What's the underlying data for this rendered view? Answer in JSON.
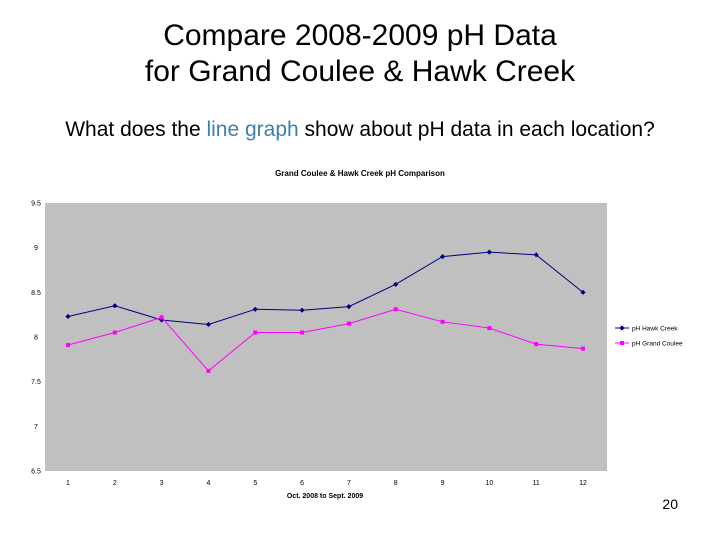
{
  "slide": {
    "title_line1": "Compare 2008-2009 pH Data",
    "title_line2": "for Grand Coulee & Hawk Creek",
    "question_before": "What does the ",
    "question_highlight": "line graph",
    "question_after": " show about pH data in each location?",
    "page_number": "20"
  },
  "colors": {
    "plot_background": "#c0c0c0",
    "hawk_creek": "#000080",
    "grand_coulee": "#ff00ff",
    "highlight_text": "#3e7fae"
  },
  "chart_data": {
    "type": "line",
    "title": "Grand Coulee & Hawk Creek pH Comparison",
    "xlabel": "Oct. 2008 to Sept. 2009",
    "ylabel": "",
    "x": [
      1,
      2,
      3,
      4,
      5,
      6,
      7,
      8,
      9,
      10,
      11,
      12
    ],
    "ylim": [
      6.5,
      9.5
    ],
    "yticks": [
      "6.5",
      "7",
      "7.5",
      "8",
      "8.5",
      "9",
      "9.5"
    ],
    "grid": false,
    "legend_position": "right",
    "series": [
      {
        "name": "pH Hawk Creek",
        "color": "#000080",
        "marker": "diamond",
        "values": [
          8.23,
          8.35,
          8.19,
          8.14,
          8.31,
          8.3,
          8.34,
          8.59,
          8.9,
          8.95,
          8.92,
          8.5
        ]
      },
      {
        "name": "pH Grand Coulee",
        "color": "#ff00ff",
        "marker": "square",
        "values": [
          7.91,
          8.05,
          8.22,
          7.62,
          8.05,
          8.05,
          8.15,
          8.31,
          8.17,
          8.1,
          7.92,
          7.87
        ]
      }
    ]
  }
}
